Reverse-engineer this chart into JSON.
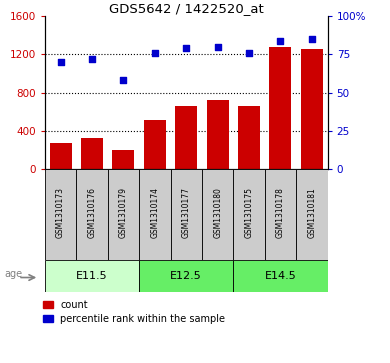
{
  "title": "GDS5642 / 1422520_at",
  "samples": [
    "GSM1310173",
    "GSM1310176",
    "GSM1310179",
    "GSM1310174",
    "GSM1310177",
    "GSM1310180",
    "GSM1310175",
    "GSM1310178",
    "GSM1310181"
  ],
  "counts": [
    270,
    320,
    195,
    510,
    655,
    720,
    655,
    1280,
    1255
  ],
  "percentile": [
    70,
    72,
    58,
    76,
    79,
    80,
    76,
    84,
    85
  ],
  "group_labels": [
    "E11.5",
    "E12.5",
    "E14.5"
  ],
  "group_ranges": [
    [
      0,
      2
    ],
    [
      3,
      5
    ],
    [
      6,
      8
    ]
  ],
  "group_colors": [
    "#ccffcc",
    "#66ee66",
    "#66ee66"
  ],
  "ylim_left": [
    0,
    1600
  ],
  "ylim_right": [
    0,
    100
  ],
  "yticks_left": [
    0,
    400,
    800,
    1200,
    1600
  ],
  "yticks_right": [
    0,
    25,
    50,
    75,
    100
  ],
  "ytick_labels_right": [
    "0",
    "25",
    "50",
    "75",
    "100%"
  ],
  "bar_color": "#cc0000",
  "dot_color": "#0000cc",
  "age_label": "age",
  "legend_count_label": "count",
  "legend_pct_label": "percentile rank within the sample",
  "gridline_values": [
    400,
    800,
    1200
  ],
  "label_box_color": "#cccccc",
  "left_tick_color": "#cc0000",
  "right_tick_color": "#0000cc"
}
